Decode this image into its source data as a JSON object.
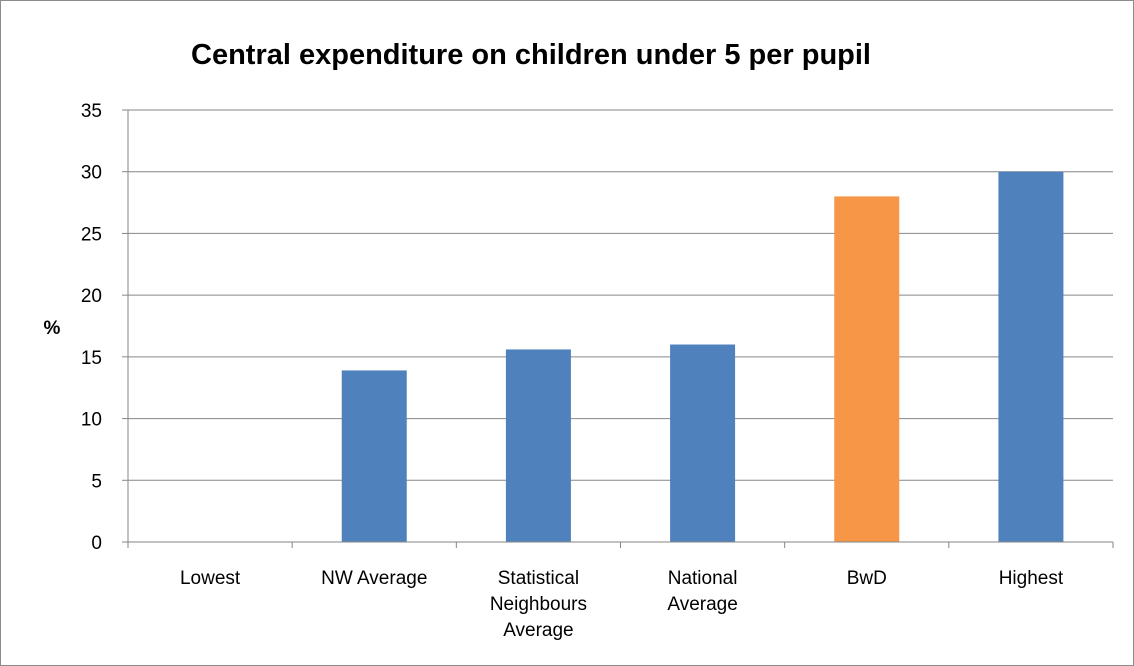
{
  "chart_data": {
    "type": "bar",
    "title": "Central expenditure on children under 5 per pupil",
    "ylabel": "%",
    "xlabel": "",
    "categories": [
      [
        "Lowest"
      ],
      [
        "NW  Average"
      ],
      [
        "Statistical",
        "Neighbours",
        "Average"
      ],
      [
        "National",
        "Average"
      ],
      [
        "BwD"
      ],
      [
        "Highest"
      ]
    ],
    "values": [
      0,
      13.9,
      15.6,
      16.0,
      28.0,
      30.0
    ],
    "ylim": [
      0,
      35
    ],
    "yticks": [
      0,
      5,
      10,
      15,
      20,
      25,
      30,
      35
    ],
    "grid": true,
    "legend": "none",
    "colors": {
      "default": "#4f81bd",
      "highlight": "#f79646",
      "highlight_category": "BwD",
      "gridline": "#868686",
      "axis": "#868686"
    }
  }
}
